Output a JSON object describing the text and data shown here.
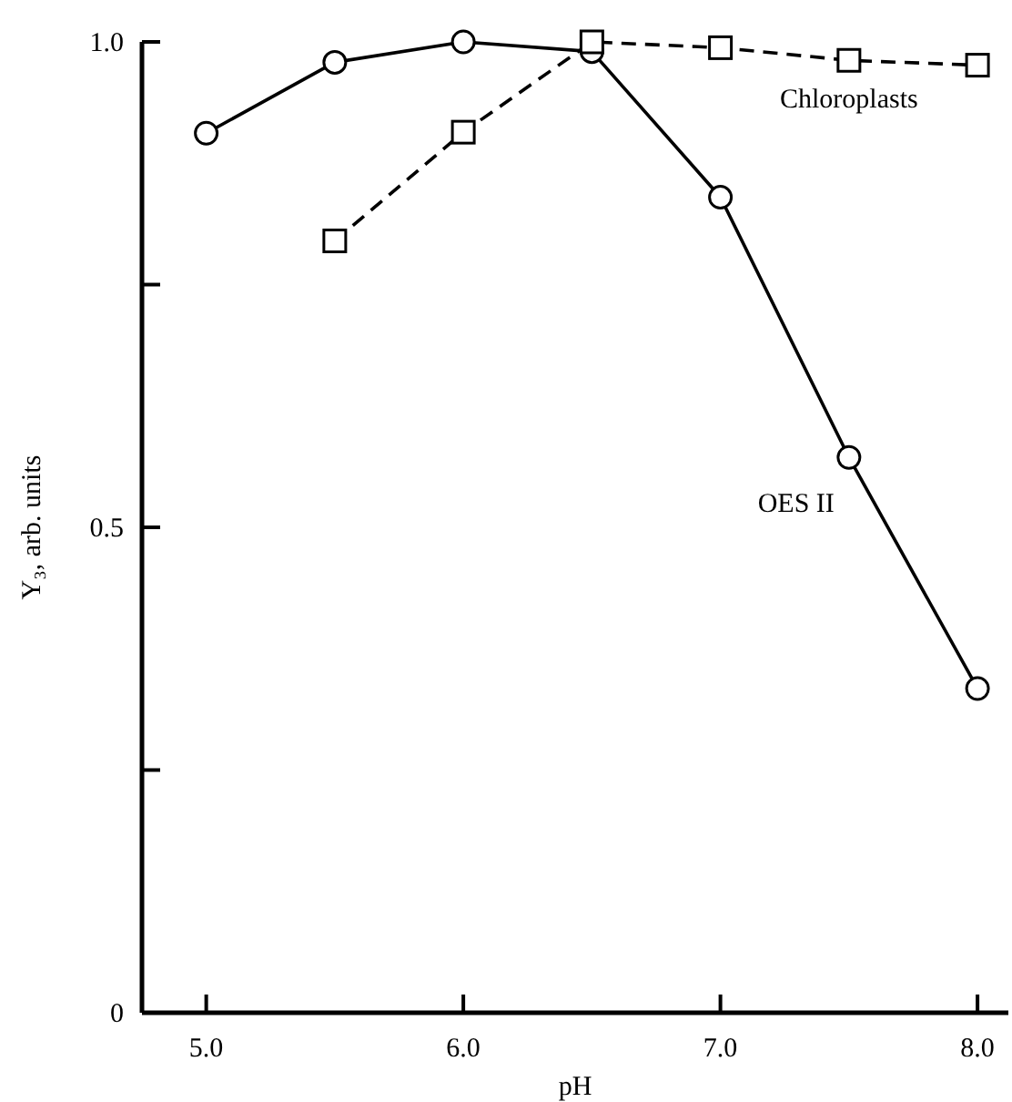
{
  "chart_data": {
    "type": "line",
    "xlabel": "pH",
    "ylabel": "Y₃,  arb. units",
    "xlim": [
      4.75,
      8.12
    ],
    "ylim": [
      0,
      1.0
    ],
    "xticks": [
      {
        "value": 5,
        "label": "5.0"
      },
      {
        "value": 6,
        "label": "6.0"
      },
      {
        "value": 7,
        "label": "7.0"
      },
      {
        "value": 8,
        "label": "8.0"
      }
    ],
    "yticks": [
      0,
      {
        "value": 0.25,
        "label": null
      },
      {
        "value": 0.5,
        "label": "0.5"
      },
      {
        "value": 0.75,
        "label": null
      },
      {
        "value": 1,
        "label": "1.0"
      }
    ],
    "grid": false,
    "legend": false,
    "series": [
      {
        "name": "OES II",
        "color": "#000000",
        "marker": "circle",
        "line_style": "solid",
        "x": [
          5.0,
          5.5,
          6.0,
          6.5,
          7.0,
          7.5,
          8.0
        ],
        "values": [
          0.906,
          0.979,
          1.0,
          0.99,
          0.84,
          0.572,
          0.334
        ]
      },
      {
        "name": "Chloroplasts",
        "color": "#000000",
        "marker": "square",
        "line_style": "dashed",
        "x": [
          5.5,
          6.0,
          6.5,
          7.0,
          7.5,
          8.0
        ],
        "values": [
          0.795,
          0.907,
          1.0,
          0.994,
          0.981,
          0.976
        ]
      }
    ]
  }
}
